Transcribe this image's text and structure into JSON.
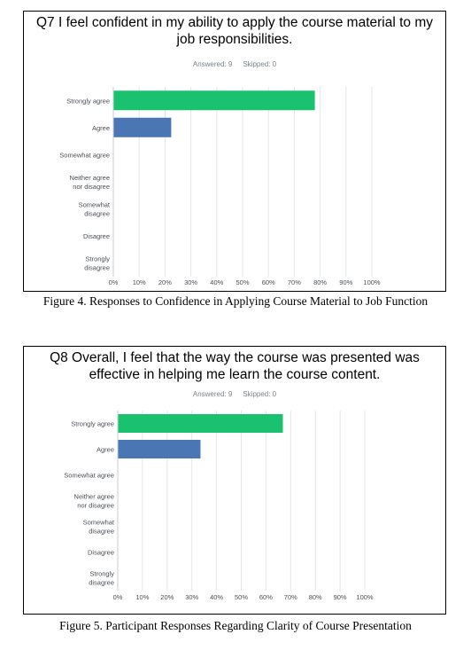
{
  "charts": [
    {
      "question": "Q7 I feel confident in my ability to apply the course material to my job responsibilities.",
      "answered": "Answered: 9",
      "skipped": "Skipped: 0",
      "caption": "Figure 4. Responses to Confidence in Applying Course Material to Job Function"
    },
    {
      "question": "Q8 Overall, I feel that the way the course was presented was effective in helping me learn the course content.",
      "answered": "Answered: 9",
      "skipped": "Skipped: 0",
      "caption": "Figure 5. Participant Responses Regarding Clarity of Course Presentation"
    }
  ],
  "colors": {
    "strongly_agree": "#1ac16e",
    "agree": "#4a77b4",
    "grid": "#e3e6ea",
    "label": "#4a4f55"
  },
  "chart_data": [
    {
      "type": "bar",
      "orientation": "horizontal",
      "categories": [
        [
          "Strongly agree"
        ],
        [
          "Agree"
        ],
        [
          "Somewhat agree"
        ],
        [
          "Neither agree",
          "nor disagree"
        ],
        [
          "Somewhat",
          "disagree"
        ],
        [
          "Disagree"
        ],
        [
          "Strongly",
          "disagree"
        ]
      ],
      "values": [
        77.78,
        22.22,
        0,
        0,
        0,
        0,
        0
      ],
      "bar_colors": [
        "#1ac16e",
        "#4a77b4",
        "#4a77b4",
        "#4a77b4",
        "#4a77b4",
        "#4a77b4",
        "#4a77b4"
      ],
      "xticks": [
        "0%",
        "10%",
        "20%",
        "30%",
        "40%",
        "50%",
        "60%",
        "70%",
        "80%",
        "90%",
        "100%"
      ],
      "xlim": [
        0,
        100
      ],
      "grid": true
    },
    {
      "type": "bar",
      "orientation": "horizontal",
      "categories": [
        [
          "Strongly agree"
        ],
        [
          "Agree"
        ],
        [
          "Somewhat agree"
        ],
        [
          "Neither agree",
          "nor disagree"
        ],
        [
          "Somewhat",
          "disagree"
        ],
        [
          "Disagree"
        ],
        [
          "Strongly",
          "disagree"
        ]
      ],
      "values": [
        66.67,
        33.33,
        0,
        0,
        0,
        0,
        0
      ],
      "bar_colors": [
        "#1ac16e",
        "#4a77b4",
        "#4a77b4",
        "#4a77b4",
        "#4a77b4",
        "#4a77b4",
        "#4a77b4"
      ],
      "xticks": [
        "0%",
        "10%",
        "20%",
        "30%",
        "40%",
        "50%",
        "60%",
        "70%",
        "80%",
        "90%",
        "100%"
      ],
      "xlim": [
        0,
        100
      ],
      "grid": true
    }
  ]
}
